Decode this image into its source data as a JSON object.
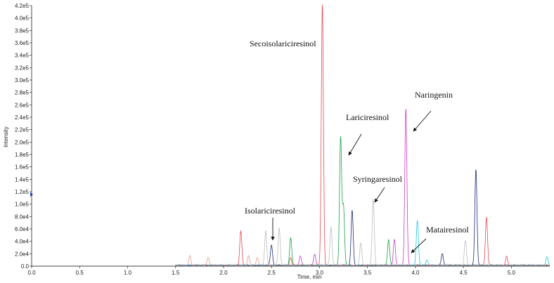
{
  "chart_data": {
    "type": "line",
    "title": "",
    "xlabel": "Time, min",
    "ylabel": "Intensity",
    "xlim": [
      0.0,
      5.4
    ],
    "ylim": [
      0,
      420000
    ],
    "x_ticks": [
      "0.0",
      "0.5",
      "1.0",
      "1.5",
      "2.0",
      "2.5",
      "3.0",
      "3.5",
      "4.0",
      "4.5",
      "5.0"
    ],
    "y_ticks": [
      "0.0",
      "2.0e4",
      "4.0e4",
      "6.0e4",
      "8.0e4",
      "1.0e5",
      "1.2e5",
      "1.4e5",
      "1.6e5",
      "1.8e5",
      "2.0e5",
      "2.2e5",
      "2.4e5",
      "2.6e5",
      "2.8e5",
      "3.0e5",
      "3.2e5",
      "3.4e5",
      "3.6e5",
      "3.8e5",
      "4.0e5",
      "4.2e5"
    ],
    "grid": false,
    "legend": "none",
    "series": [
      {
        "color": "#e8474c",
        "peaks": [
          [
            2.18,
            56000
          ],
          [
            3.03,
            420000
          ],
          [
            4.74,
            78000
          ],
          [
            4.95,
            15000
          ],
          [
            2.7,
            12000
          ]
        ]
      },
      {
        "color": "#1aa34a",
        "peaks": [
          [
            3.22,
            205000
          ],
          [
            3.25,
            95000
          ],
          [
            3.72,
            42000
          ],
          [
            2.7,
            45000
          ]
        ]
      },
      {
        "color": "#c83cc0",
        "peaks": [
          [
            3.9,
            253000
          ],
          [
            3.78,
            42000
          ],
          [
            2.95,
            18000
          ],
          [
            2.8,
            16000
          ]
        ]
      },
      {
        "color": "#1f2a7a",
        "peaks": [
          [
            4.63,
            155000
          ],
          [
            3.34,
            88000
          ],
          [
            2.5,
            33000
          ],
          [
            4.28,
            20000
          ]
        ]
      },
      {
        "color": "#bdbdbd",
        "peaks": [
          [
            2.58,
            60000
          ],
          [
            2.44,
            55000
          ],
          [
            3.56,
            107000
          ],
          [
            3.12,
            62000
          ],
          [
            3.43,
            35000
          ],
          [
            4.52,
            40000
          ]
        ]
      },
      {
        "color": "#27c5d8",
        "peaks": [
          [
            4.02,
            73000
          ],
          [
            4.12,
            10000
          ],
          [
            5.37,
            14000
          ]
        ]
      },
      {
        "color": "#e0a090",
        "peaks": [
          [
            1.65,
            16000
          ],
          [
            1.84,
            12000
          ],
          [
            2.26,
            15000
          ],
          [
            2.35,
            13000
          ]
        ]
      }
    ],
    "annotations": [
      {
        "label": "Secoisolariciresinol",
        "x": 3.03,
        "y": 420000
      },
      {
        "label": "Lariciresinol",
        "x": 3.22,
        "y": 205000
      },
      {
        "label": "Naringenin",
        "x": 3.9,
        "y": 253000
      },
      {
        "label": "Syringaresinol",
        "x": 3.56,
        "y": 107000
      },
      {
        "label": "Isolariciresinol",
        "x": 2.5,
        "y": 33000
      },
      {
        "label": "Matairesinol",
        "x": 3.94,
        "y": 20000
      }
    ]
  }
}
